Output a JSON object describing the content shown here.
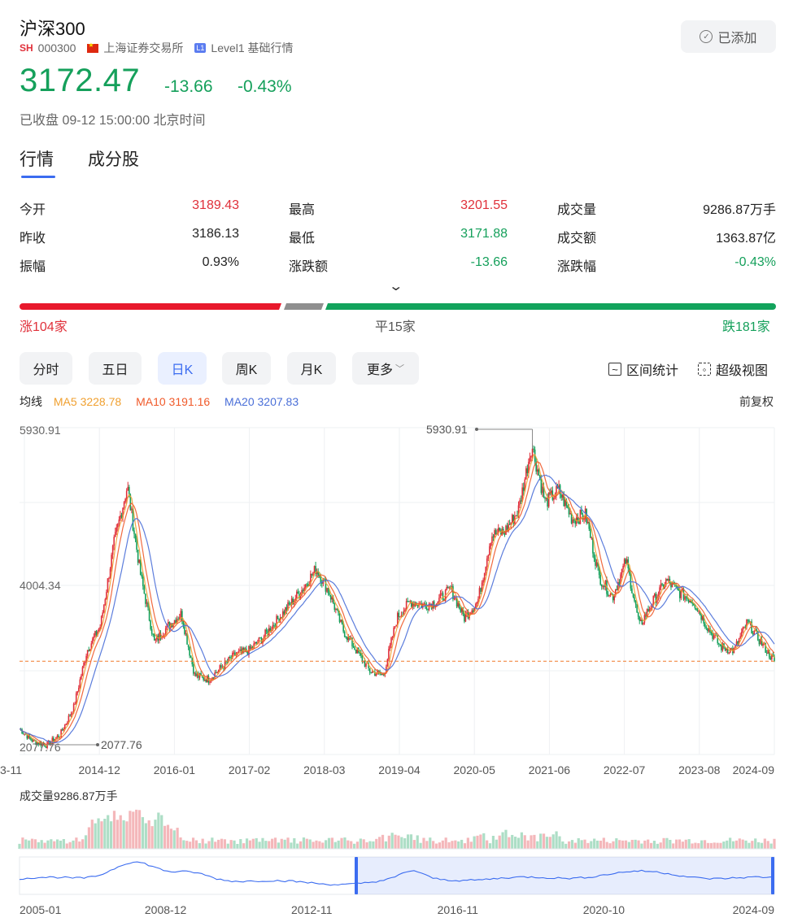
{
  "header": {
    "title": "沪深300",
    "market_badge": "SH",
    "code": "000300",
    "exchange": "上海证券交易所",
    "level_badge": "L1",
    "level_text": "Level1 基础行情",
    "added_label": "已添加"
  },
  "quote": {
    "price": "3172.47",
    "change": "-13.66",
    "change_pct": "-0.43%",
    "status": "已收盘 09-12 15:00:00 北京时间"
  },
  "tabs": [
    {
      "label": "行情",
      "active": true
    },
    {
      "label": "成分股",
      "active": false
    }
  ],
  "stats": [
    {
      "label": "今开",
      "value": "3189.43",
      "color": "red"
    },
    {
      "label": "最高",
      "value": "3201.55",
      "color": "red"
    },
    {
      "label": "成交量",
      "value": "9286.87万手",
      "color": "dark"
    },
    {
      "label": "昨收",
      "value": "3186.13",
      "color": "dark"
    },
    {
      "label": "最低",
      "value": "3171.88",
      "color": "green"
    },
    {
      "label": "成交额",
      "value": "1363.87亿",
      "color": "dark"
    },
    {
      "label": "振幅",
      "value": "0.93%",
      "color": "dark"
    },
    {
      "label": "涨跌额",
      "value": "-13.66",
      "color": "green"
    },
    {
      "label": "涨跌幅",
      "value": "-0.43%",
      "color": "green"
    }
  ],
  "breadth": {
    "up_label": "涨104家",
    "up": 104,
    "flat_label": "平15家",
    "flat": 15,
    "down_label": "跌181家",
    "down": 181,
    "colors": {
      "up": "#e8192c",
      "flat": "#8f8f8f",
      "down": "#12a35c"
    }
  },
  "periods": [
    {
      "label": "分时",
      "active": false
    },
    {
      "label": "五日",
      "active": false
    },
    {
      "label": "日K",
      "active": true
    },
    {
      "label": "周K",
      "active": false
    },
    {
      "label": "月K",
      "active": false
    },
    {
      "label": "更多",
      "active": false
    }
  ],
  "tools": {
    "range_stats": "区间统计",
    "super_view": "超级视图"
  },
  "ma": {
    "label": "均线",
    "ma5": "MA5 3228.78",
    "ma10": "MA10 3191.16",
    "ma20": "MA20 3207.83",
    "colors": {
      "ma5": "#f0a030",
      "ma10": "#f05a2a",
      "ma20": "#4a6fd8"
    }
  },
  "adjust": "前复权",
  "colors": {
    "up": "#e0303a",
    "down": "#15a05b",
    "accent": "#3b6cf0"
  },
  "chart_data": {
    "type": "line",
    "description_series": "沪深300 日K price path (approximate closes)",
    "y_ticks": [
      "5930.91",
      "4004.34",
      "2077.76"
    ],
    "ylim": [
      2077.76,
      5930.91
    ],
    "x_ticks": [
      "3-11",
      "2014-12",
      "2016-01",
      "2017-02",
      "2018-03",
      "2019-04",
      "2020-05",
      "2021-06",
      "2022-07",
      "2023-08",
      "2024-09"
    ],
    "max_label": "5930.91",
    "min_label": "2077.76",
    "last_price": 3172.47,
    "series": [
      {
        "x": [
          "2013-11",
          "2014-02",
          "2014-05",
          "2014-08",
          "2014-11",
          "2014-12",
          "2015-02",
          "2015-04",
          "2015-06",
          "2015-07",
          "2015-08",
          "2015-10",
          "2015-12",
          "2016-01",
          "2016-03",
          "2016-06",
          "2016-09",
          "2016-12",
          "2017-03",
          "2017-06",
          "2017-09",
          "2017-12",
          "2018-01",
          "2018-03",
          "2018-06",
          "2018-09",
          "2018-12",
          "2019-01",
          "2019-02",
          "2019-04",
          "2019-07",
          "2019-10",
          "2020-01",
          "2020-03",
          "2020-05",
          "2020-07",
          "2020-10",
          "2020-12",
          "2021-02",
          "2021-03",
          "2021-06",
          "2021-09",
          "2021-12",
          "2022-03",
          "2022-05",
          "2022-07",
          "2022-10",
          "2022-12",
          "2023-01",
          "2023-04",
          "2023-07",
          "2023-10",
          "2024-01",
          "2024-02",
          "2024-05",
          "2024-07",
          "2024-09"
        ],
        "values": [
          2350,
          2200,
          2150,
          2280,
          2600,
          3300,
          3600,
          4600,
          5300,
          4200,
          3400,
          3600,
          3750,
          3000,
          2950,
          3100,
          3250,
          3300,
          3450,
          3650,
          3850,
          4050,
          4300,
          4000,
          3550,
          3300,
          3050,
          3000,
          3700,
          3900,
          3850,
          3900,
          4050,
          3700,
          3900,
          4700,
          4750,
          5000,
          5800,
          5100,
          5250,
          4900,
          4950,
          4200,
          3950,
          4400,
          3600,
          3900,
          4150,
          4000,
          3900,
          3600,
          3350,
          3300,
          3650,
          3400,
          3172
        ]
      }
    ],
    "volume": {
      "label": "成交量9286.87万手"
    },
    "overview": {
      "x_ticks": [
        "2005-01",
        "2008-12",
        "2012-11",
        "2016-11",
        "2020-10",
        "2024-09"
      ]
    }
  }
}
